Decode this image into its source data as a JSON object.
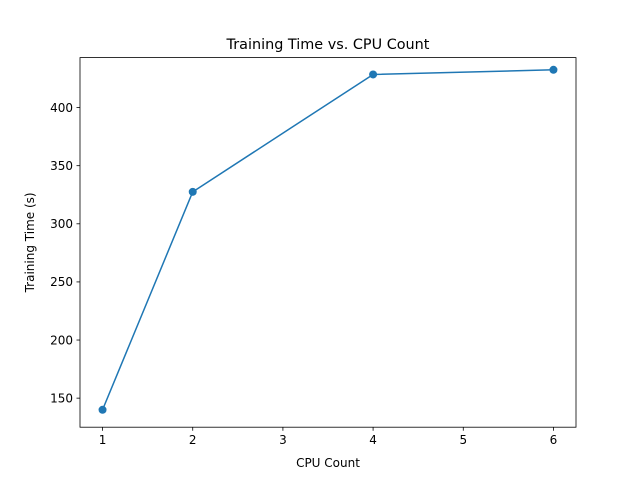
{
  "chart_data": {
    "type": "line",
    "title": "Training Time vs. CPU Count",
    "xlabel": "CPU Count",
    "ylabel": "Training Time (s)",
    "x": [
      1,
      2,
      4,
      6
    ],
    "series": [
      {
        "values": [
          140,
          327.5,
          428.5,
          432.5
        ],
        "color": "#1f77b4",
        "marker": "circle"
      }
    ],
    "xlim": [
      0.75,
      6.25
    ],
    "ylim": [
      125,
      443
    ],
    "xticks": [
      1,
      2,
      3,
      4,
      5,
      6
    ],
    "yticks": [
      150,
      200,
      250,
      300,
      350,
      400
    ],
    "grid": false,
    "legend": "none"
  }
}
